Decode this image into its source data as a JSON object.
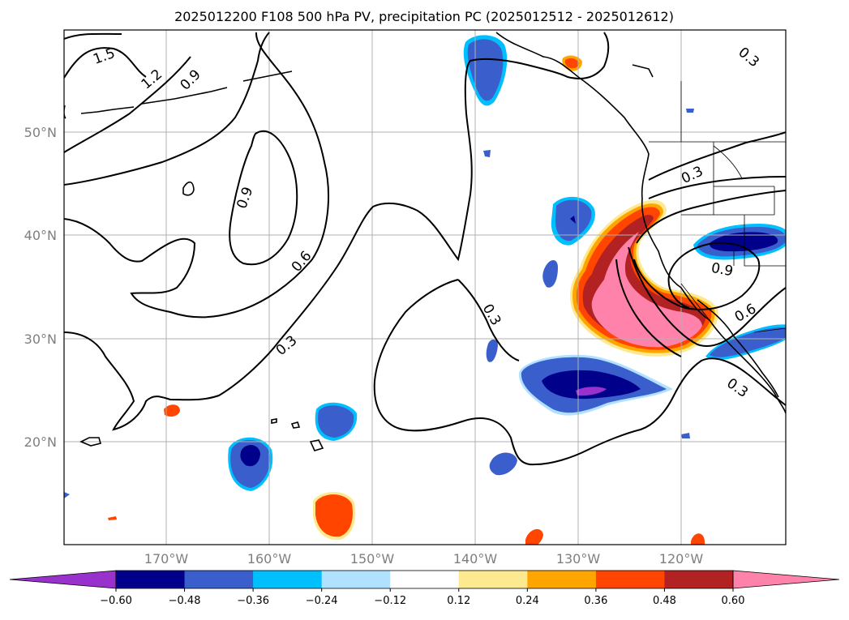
{
  "title": "2025012200 F108 500 hPa PV, precipitation PC (2025012512 - 2025012612)",
  "lat_labels": [
    "50°N",
    "40°N",
    "30°N",
    "20°N"
  ],
  "lon_labels": [
    "170°W",
    "160°W",
    "150°W",
    "140°W",
    "130°W",
    "120°W"
  ],
  "colorbar": {
    "ticks": [
      "−0.60",
      "−0.48",
      "−0.36",
      "−0.24",
      "−0.12",
      "0.12",
      "0.24",
      "0.36",
      "0.48",
      "0.60"
    ],
    "colors": [
      "#9932cc",
      "#00008b",
      "#3a5fcd",
      "#00bfff",
      "#b0e2ff",
      "#ffffff",
      "#fde98f",
      "#ffa500",
      "#ff4500",
      "#b22222",
      "#ff82ab"
    ]
  },
  "pv_labels": [
    "1.5",
    "1.2",
    "0.9",
    "0.9",
    "0.6",
    "0.3",
    "0.3",
    "0.3",
    "0.9",
    "0.6",
    "0.3",
    "0.3"
  ],
  "precip_colors": {
    "neg_light": "#b0e2ff",
    "neg_sky": "#00bfff",
    "neg_mid": "#3a5fcd",
    "neg_dark": "#00008b",
    "neg_purple": "#9932cc",
    "pos_yellow": "#fde98f",
    "pos_orange": "#ffa500",
    "pos_red": "#ff4500",
    "pos_brick": "#b22222",
    "pos_pink": "#ff82ab"
  }
}
